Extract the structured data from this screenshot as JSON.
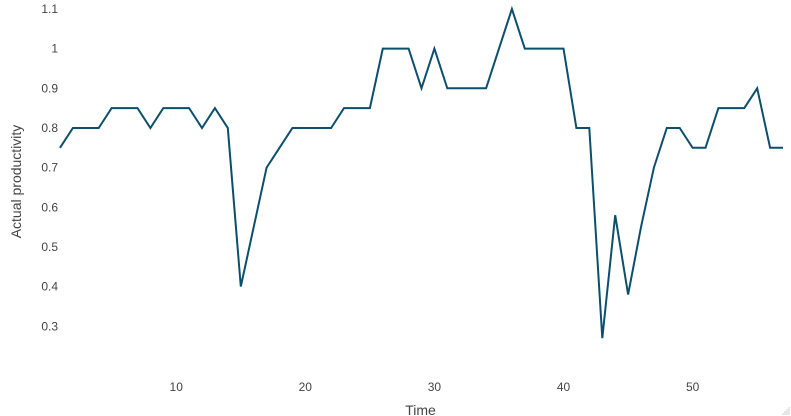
{
  "chart_data": {
    "type": "line",
    "title": "",
    "xlabel": "Time",
    "ylabel": "Actual productivity",
    "xlim": [
      1,
      57
    ],
    "ylim": [
      0.22,
      1.11
    ],
    "xticks": [
      10,
      20,
      30,
      40,
      50
    ],
    "yticks": [
      0.3,
      0.4,
      0.5,
      0.6,
      0.7,
      0.8,
      0.9,
      1,
      1.1
    ],
    "ytick_labels": [
      "0.3",
      "0.4",
      "0.5",
      "0.6",
      "0.7",
      "0.8",
      "0.9",
      "1",
      "1.1"
    ],
    "grid": false,
    "legend": "none",
    "series": [
      {
        "color": "#0b4f6c",
        "x": [
          1,
          2,
          3,
          4,
          5,
          6,
          7,
          8,
          9,
          10,
          11,
          12,
          13,
          14,
          15,
          16,
          17,
          18,
          19,
          20,
          21,
          22,
          23,
          24,
          25,
          26,
          27,
          28,
          29,
          30,
          31,
          32,
          33,
          34,
          35,
          36,
          37,
          38,
          39,
          40,
          41,
          42,
          43,
          44,
          45,
          46,
          47,
          48,
          49,
          50,
          51,
          52,
          53,
          54,
          55,
          56,
          57
        ],
        "y": [
          0.75,
          0.8,
          0.8,
          0.8,
          0.85,
          0.85,
          0.85,
          0.8,
          0.85,
          0.85,
          0.85,
          0.8,
          0.85,
          0.8,
          0.4,
          0.55,
          0.7,
          0.75,
          0.8,
          0.8,
          0.8,
          0.8,
          0.85,
          0.85,
          0.85,
          1.0,
          1.0,
          1.0,
          0.9,
          1.0,
          0.9,
          0.9,
          0.9,
          0.9,
          1.0,
          1.1,
          1.0,
          1.0,
          1.0,
          1.0,
          0.8,
          0.8,
          0.27,
          0.58,
          0.38,
          0.55,
          0.7,
          0.8,
          0.8,
          0.75,
          0.75,
          0.85,
          0.85,
          0.85,
          0.9,
          0.75,
          0.75
        ]
      }
    ]
  }
}
